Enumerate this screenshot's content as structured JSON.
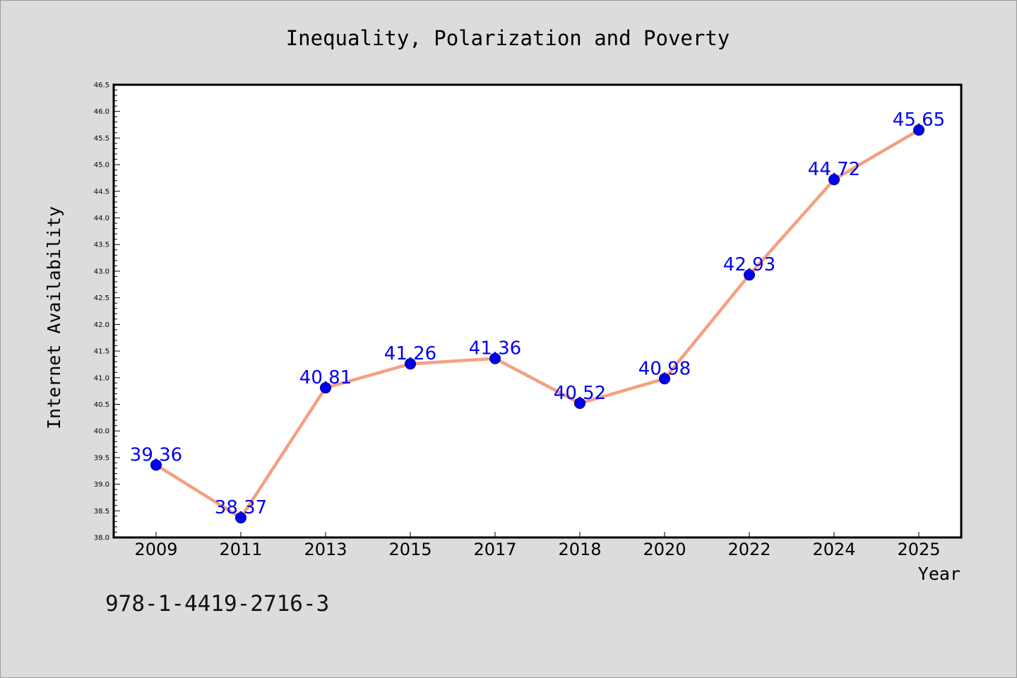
{
  "chart_data": {
    "type": "line",
    "title": "Inequality, Polarization and Poverty",
    "xlabel": "Year",
    "ylabel": "Internet Availability",
    "categories": [
      "2009",
      "2011",
      "2013",
      "2015",
      "2017",
      "2018",
      "2020",
      "2022",
      "2024",
      "2025"
    ],
    "values": [
      39.36,
      38.37,
      40.81,
      41.26,
      41.36,
      40.52,
      40.98,
      42.93,
      44.72,
      45.65
    ],
    "data_labels": [
      "39.36",
      "38.37",
      "40.81",
      "41.26",
      "41.36",
      "40.52",
      "40.98",
      "42.93",
      "44.72",
      "45.65"
    ],
    "ylim": [
      38.0,
      46.5
    ],
    "yticks": [
      "38.0",
      "38.5",
      "39.0",
      "39.5",
      "40.0",
      "40.5",
      "41.0",
      "41.5",
      "42.0",
      "42.5",
      "43.0",
      "43.5",
      "44.0",
      "44.5",
      "45.0",
      "45.5",
      "46.0",
      "46.5"
    ],
    "grid": false,
    "legend": "none",
    "line_color": "#f4a07f",
    "marker_color": "#0000ee",
    "label_color": "#0000ee",
    "plot_background": "#ffffff",
    "figure_background": "#dcdcdc"
  },
  "footer": {
    "isbn": "978-1-4419-2716-3"
  }
}
